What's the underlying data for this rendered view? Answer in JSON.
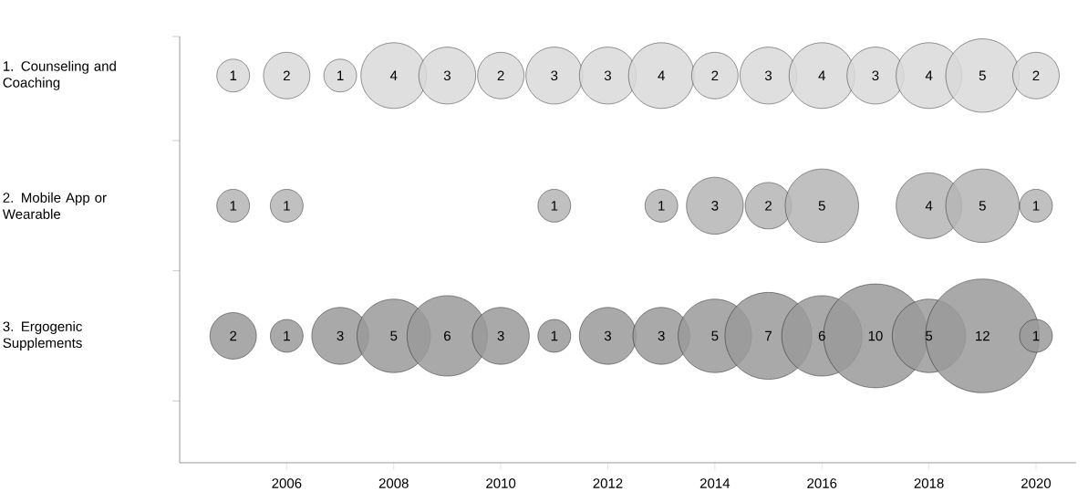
{
  "chart_data": {
    "type": "bubble",
    "orientation": "horizontal",
    "categories": [
      "1. Counseling and Coaching",
      "2. Mobile App or Wearable",
      "3. Ergogenic Supplements"
    ],
    "xlim": [
      2004,
      2020.75
    ],
    "xticks": [
      2006,
      2008,
      2010,
      2012,
      2014,
      2016,
      2018,
      2020
    ],
    "series": [
      {
        "values": [
          2005,
          2005,
          2005
        ],
        "sizes": [
          1,
          1,
          2
        ],
        "value_labels": [
          "1",
          "1",
          "2"
        ],
        "colors": [
          "#d9d9d9",
          "#b5b5b5",
          "#9a9a9a"
        ]
      },
      {
        "values": [
          2006,
          2006,
          2006
        ],
        "sizes": [
          2,
          1,
          1
        ],
        "value_labels": [
          "2",
          "1",
          "1"
        ],
        "colors": [
          "#d9d9d9",
          "#b5b5b5",
          "#9a9a9a"
        ]
      },
      {
        "values": [
          2007,
          null,
          2007
        ],
        "sizes": [
          1,
          null,
          3
        ],
        "value_labels": [
          "1",
          null,
          "3"
        ],
        "colors": [
          "#d9d9d9",
          "#b5b5b5",
          "#9a9a9a"
        ]
      },
      {
        "values": [
          2008,
          null,
          2008
        ],
        "sizes": [
          4,
          null,
          5
        ],
        "value_labels": [
          "4",
          null,
          "5"
        ],
        "colors": [
          "#d9d9d9",
          "#b5b5b5",
          "#9a9a9a"
        ]
      },
      {
        "values": [
          2009,
          null,
          2009
        ],
        "sizes": [
          3,
          null,
          6
        ],
        "value_labels": [
          "3",
          null,
          "6"
        ],
        "colors": [
          "#d9d9d9",
          "#b5b5b5",
          "#9a9a9a"
        ]
      },
      {
        "values": [
          2010,
          null,
          2010
        ],
        "sizes": [
          2,
          null,
          3
        ],
        "value_labels": [
          "2",
          null,
          "3"
        ],
        "colors": [
          "#d9d9d9",
          "#b5b5b5",
          "#9a9a9a"
        ]
      },
      {
        "values": [
          2011,
          2011,
          2011
        ],
        "sizes": [
          3,
          1,
          1
        ],
        "value_labels": [
          "3",
          "1",
          "1"
        ],
        "colors": [
          "#d9d9d9",
          "#b5b5b5",
          "#9a9a9a"
        ]
      },
      {
        "values": [
          2012,
          null,
          2012
        ],
        "sizes": [
          3,
          null,
          3
        ],
        "value_labels": [
          "3",
          null,
          "3"
        ],
        "colors": [
          "#d9d9d9",
          "#b5b5b5",
          "#9a9a9a"
        ]
      },
      {
        "values": [
          2013,
          2013,
          2013
        ],
        "sizes": [
          4,
          1,
          3
        ],
        "value_labels": [
          "4",
          "1",
          "3"
        ],
        "colors": [
          "#d9d9d9",
          "#b5b5b5",
          "#9a9a9a"
        ]
      },
      {
        "values": [
          2014,
          2014,
          2014
        ],
        "sizes": [
          2,
          3,
          5
        ],
        "value_labels": [
          "2",
          "3",
          "5"
        ],
        "colors": [
          "#d9d9d9",
          "#b5b5b5",
          "#9a9a9a"
        ]
      },
      {
        "values": [
          2015,
          2015,
          2015
        ],
        "sizes": [
          3,
          2,
          7
        ],
        "value_labels": [
          "3",
          "2",
          "7"
        ],
        "colors": [
          "#d9d9d9",
          "#b5b5b5",
          "#9a9a9a"
        ]
      },
      {
        "values": [
          2016,
          2016,
          2016
        ],
        "sizes": [
          4,
          5,
          6
        ],
        "value_labels": [
          "4",
          "5",
          "6"
        ],
        "colors": [
          "#d9d9d9",
          "#b5b5b5",
          "#9a9a9a"
        ]
      },
      {
        "values": [
          2017,
          null,
          2017
        ],
        "sizes": [
          3,
          null,
          10
        ],
        "value_labels": [
          "3",
          null,
          "10"
        ],
        "colors": [
          "#d9d9d9",
          "#b5b5b5",
          "#9a9a9a"
        ]
      },
      {
        "values": [
          2018,
          2018,
          2018
        ],
        "sizes": [
          4,
          4,
          5
        ],
        "value_labels": [
          "4",
          "4",
          "5"
        ],
        "colors": [
          "#d9d9d9",
          "#b5b5b5",
          "#9a9a9a"
        ]
      },
      {
        "values": [
          2019,
          2019,
          2019
        ],
        "sizes": [
          5,
          5,
          12
        ],
        "value_labels": [
          "5",
          "5",
          "12"
        ],
        "colors": [
          "#d9d9d9",
          "#b5b5b5",
          "#9a9a9a"
        ]
      },
      {
        "values": [
          2020,
          2020,
          2020
        ],
        "sizes": [
          2,
          1,
          1
        ],
        "value_labels": [
          "2",
          "1",
          "1"
        ],
        "colors": [
          "#d9d9d9",
          "#b5b5b5",
          "#9a9a9a"
        ]
      }
    ]
  }
}
